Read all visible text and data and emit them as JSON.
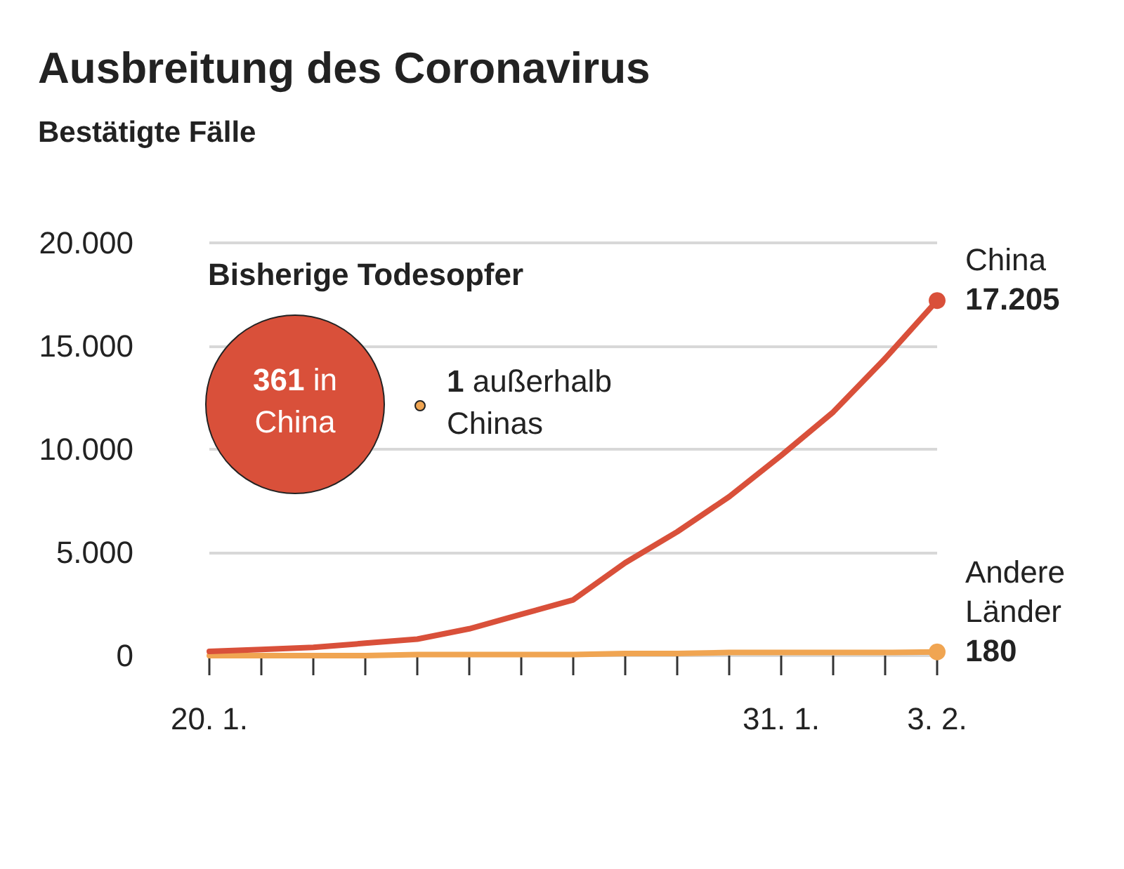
{
  "chart_data": {
    "type": "line",
    "title": "Ausbreitung des Coronavirus",
    "subtitle": "Bestätigte Fälle",
    "categories": [
      "20. 1.",
      null,
      null,
      null,
      null,
      null,
      null,
      null,
      null,
      null,
      null,
      "31. 1.",
      null,
      null,
      "3. 2."
    ],
    "series": [
      {
        "name": "China",
        "color": "#d9503a",
        "values": [
          200,
          300,
          400,
          600,
          800,
          1300,
          2000,
          2700,
          4500,
          6000,
          7700,
          9700,
          11800,
          14400,
          17205
        ],
        "value_labels": [
          null,
          null,
          null,
          null,
          null,
          null,
          null,
          null,
          null,
          null,
          null,
          null,
          null,
          null,
          "17.205"
        ]
      },
      {
        "name": "Andere Länder",
        "color": "#f0a552",
        "values": [
          0,
          0,
          0,
          0,
          50,
          50,
          50,
          50,
          100,
          100,
          150,
          150,
          150,
          150,
          180
        ],
        "value_labels": [
          null,
          null,
          null,
          null,
          null,
          null,
          null,
          null,
          null,
          null,
          null,
          null,
          null,
          null,
          "180"
        ]
      }
    ],
    "ylim": [
      0,
      20000
    ],
    "yticks": [
      0,
      {
        "value": 5000,
        "label": "5.000"
      },
      {
        "value": 10000,
        "label": "10.000"
      },
      {
        "value": 15000,
        "label": "15.000"
      },
      {
        "value": 20000,
        "label": "20.000"
      }
    ],
    "grid": "y",
    "annotations": [
      "Bisherige Todesopfer",
      "361 in China",
      "1 außerhalb Chinas"
    ]
  }
}
